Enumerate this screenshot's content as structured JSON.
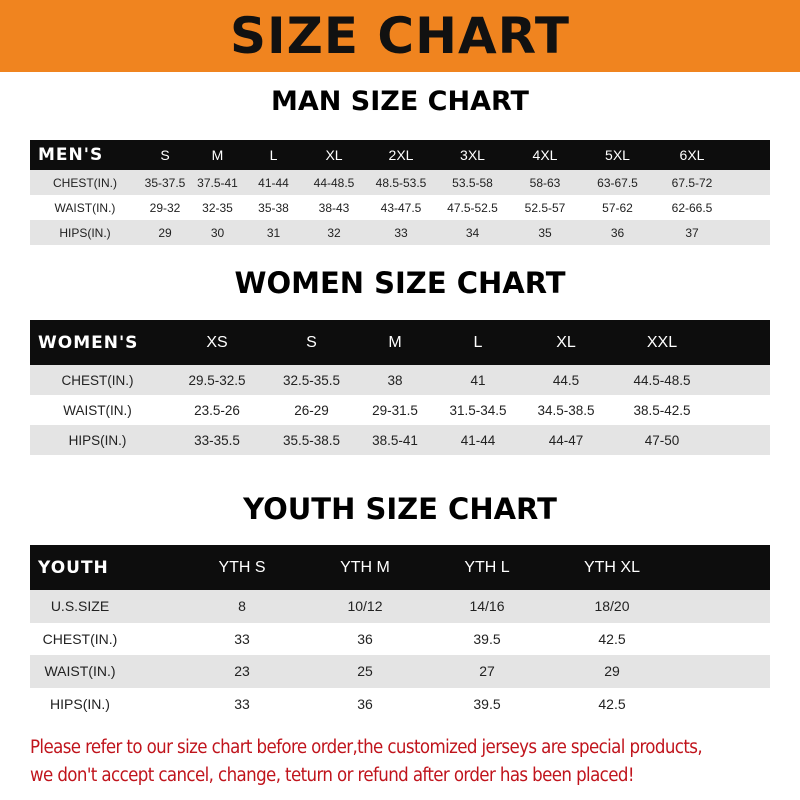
{
  "banner": {
    "title": "SIZE CHART",
    "color": "#f0841f"
  },
  "men": {
    "title": "MAN SIZE CHART",
    "header": [
      "MEN'S",
      "S",
      "M",
      "L",
      "XL",
      "2XL",
      "3XL",
      "4XL",
      "5XL",
      "6XL"
    ],
    "rows": [
      [
        "CHEST(IN.)",
        "35-37.5",
        "37.5-41",
        "41-44",
        "44-48.5",
        "48.5-53.5",
        "53.5-58",
        "58-63",
        "63-67.5",
        "67.5-72"
      ],
      [
        "WAIST(IN.)",
        "29-32",
        "32-35",
        "35-38",
        "38-43",
        "43-47.5",
        "47.5-52.5",
        "52.5-57",
        "57-62",
        "62-66.5"
      ],
      [
        "HIPS(IN.)",
        "29",
        "30",
        "31",
        "32",
        "33",
        "34",
        "35",
        "36",
        "37"
      ]
    ]
  },
  "women": {
    "title": "WOMEN SIZE CHART",
    "header": [
      "WOMEN'S",
      "XS",
      "S",
      "M",
      "L",
      "XL",
      "XXL"
    ],
    "rows": [
      [
        "CHEST(IN.)",
        "29.5-32.5",
        "32.5-35.5",
        "38",
        "41",
        "44.5",
        "44.5-48.5"
      ],
      [
        "WAIST(IN.)",
        "23.5-26",
        "26-29",
        "29-31.5",
        "31.5-34.5",
        "34.5-38.5",
        "38.5-42.5"
      ],
      [
        "HIPS(IN.)",
        "33-35.5",
        "35.5-38.5",
        "38.5-41",
        "41-44",
        "44-47",
        "47-50"
      ]
    ]
  },
  "youth": {
    "title": "YOUTH SIZE CHART",
    "header": [
      "YOUTH",
      "YTH S",
      "YTH M",
      "YTH L",
      "YTH XL"
    ],
    "rows": [
      [
        "U.S.SIZE",
        "8",
        "10/12",
        "14/16",
        "18/20"
      ],
      [
        "CHEST(IN.)",
        "33",
        "36",
        "39.5",
        "42.5"
      ],
      [
        "WAIST(IN.)",
        "23",
        "25",
        "27",
        "29"
      ],
      [
        "HIPS(IN.)",
        "33",
        "36",
        "39.5",
        "42.5"
      ]
    ]
  },
  "note": {
    "line1": "Please refer to our size chart before order,the customized jerseys are special products,",
    "line2": "we don't accept cancel, change, teturn or refund after order has been placed!"
  }
}
